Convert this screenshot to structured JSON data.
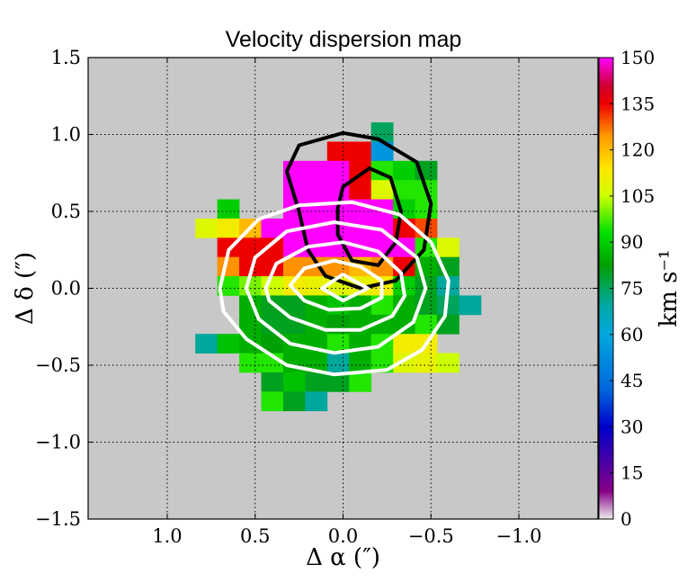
{
  "chart_data": {
    "type": "heatmap",
    "title": "Velocity dispersion map",
    "xlabel": "Δ α  (″)",
    "ylabel": "Δ δ  (″)",
    "xlim": [
      1.45,
      -1.45
    ],
    "ylim": [
      -1.5,
      1.5
    ],
    "x_ticks": [
      1.0,
      0.5,
      0.0,
      -0.5,
      -1.0
    ],
    "x_tick_labels": [
      "1.0",
      "0.5",
      "0.0",
      "−0.5",
      "−1.0"
    ],
    "y_ticks": [
      1.5,
      1.0,
      0.5,
      0.0,
      -0.5,
      -1.0,
      -1.5
    ],
    "y_tick_labels": [
      "1.5",
      "1.0",
      "0.5",
      "0.0",
      "−0.5",
      "−1.0",
      "−1.5"
    ],
    "grid": true,
    "background": "#c8c8c8",
    "pixel_size_arcsec": 0.125,
    "colorbar": {
      "label": "km s⁻¹",
      "range": [
        0,
        150
      ],
      "ticks": [
        150,
        135,
        120,
        105,
        90,
        75,
        60,
        45,
        30,
        15,
        0
      ],
      "tick_labels": [
        "150",
        "135",
        "120",
        "105",
        "90",
        "75",
        "60",
        "45",
        "30",
        "15",
        "0"
      ],
      "placement": "right",
      "colormap": [
        [
          0,
          "#eeeeee"
        ],
        [
          0.06,
          "#880088"
        ],
        [
          0.2,
          "#0000cc"
        ],
        [
          0.28,
          "#0066dd"
        ],
        [
          0.4,
          "#00a8dd"
        ],
        [
          0.46,
          "#00a8a8"
        ],
        [
          0.55,
          "#00a000"
        ],
        [
          0.62,
          "#00e000"
        ],
        [
          0.7,
          "#ccff00"
        ],
        [
          0.76,
          "#ffe600"
        ],
        [
          0.83,
          "#ff9900"
        ],
        [
          0.9,
          "#ee0000"
        ],
        [
          0.94,
          "#cc0033"
        ],
        [
          1.0,
          "#ff00ff"
        ]
      ]
    },
    "pixel_columns": [
      "x_center_arcsec",
      "y_center_arcsec",
      "sigma_km_s"
    ],
    "pixels": [
      [
        -0.222,
        1.016,
        75
      ],
      [
        -0.097,
        0.891,
        135
      ],
      [
        0.028,
        0.891,
        135
      ],
      [
        -0.222,
        0.891,
        55
      ],
      [
        0.278,
        0.766,
        150
      ],
      [
        0.153,
        0.766,
        150
      ],
      [
        0.028,
        0.766,
        150
      ],
      [
        -0.097,
        0.766,
        135
      ],
      [
        -0.222,
        0.766,
        95
      ],
      [
        -0.347,
        0.766,
        90
      ],
      [
        -0.472,
        0.766,
        80
      ],
      [
        0.278,
        0.641,
        150
      ],
      [
        0.153,
        0.641,
        150
      ],
      [
        0.028,
        0.641,
        150
      ],
      [
        -0.097,
        0.641,
        135
      ],
      [
        -0.222,
        0.641,
        108
      ],
      [
        -0.347,
        0.641,
        95
      ],
      [
        -0.472,
        0.641,
        95
      ],
      [
        0.278,
        0.516,
        150
      ],
      [
        0.153,
        0.516,
        150
      ],
      [
        0.028,
        0.516,
        150
      ],
      [
        -0.097,
        0.516,
        150
      ],
      [
        -0.222,
        0.516,
        150
      ],
      [
        -0.347,
        0.516,
        90
      ],
      [
        -0.472,
        0.516,
        95
      ],
      [
        0.653,
        0.516,
        90
      ],
      [
        0.778,
        0.391,
        108
      ],
      [
        0.653,
        0.391,
        112
      ],
      [
        0.528,
        0.391,
        120
      ],
      [
        0.403,
        0.391,
        150
      ],
      [
        0.278,
        0.391,
        150
      ],
      [
        0.153,
        0.391,
        150
      ],
      [
        0.028,
        0.391,
        150
      ],
      [
        -0.097,
        0.391,
        150
      ],
      [
        -0.222,
        0.391,
        150
      ],
      [
        -0.347,
        0.391,
        135
      ],
      [
        -0.472,
        0.391,
        130
      ],
      [
        0.653,
        0.266,
        135
      ],
      [
        0.528,
        0.266,
        135
      ],
      [
        0.403,
        0.266,
        135
      ],
      [
        0.278,
        0.266,
        150
      ],
      [
        0.153,
        0.266,
        150
      ],
      [
        0.028,
        0.266,
        150
      ],
      [
        -0.097,
        0.266,
        150
      ],
      [
        -0.222,
        0.266,
        150
      ],
      [
        -0.347,
        0.266,
        150
      ],
      [
        -0.472,
        0.266,
        95
      ],
      [
        -0.597,
        0.266,
        108
      ],
      [
        0.653,
        0.141,
        125
      ],
      [
        0.528,
        0.141,
        135
      ],
      [
        0.403,
        0.141,
        135
      ],
      [
        0.278,
        0.141,
        125
      ],
      [
        0.153,
        0.141,
        125
      ],
      [
        0.028,
        0.141,
        125
      ],
      [
        -0.097,
        0.141,
        120
      ],
      [
        -0.222,
        0.141,
        125
      ],
      [
        -0.347,
        0.141,
        135
      ],
      [
        -0.472,
        0.141,
        85
      ],
      [
        -0.597,
        0.141,
        80
      ],
      [
        0.653,
        0.016,
        95
      ],
      [
        0.528,
        0.016,
        100
      ],
      [
        0.403,
        0.016,
        105
      ],
      [
        0.278,
        0.016,
        112
      ],
      [
        0.153,
        0.016,
        110
      ],
      [
        0.028,
        0.016,
        108
      ],
      [
        -0.097,
        0.016,
        110
      ],
      [
        -0.222,
        0.016,
        112
      ],
      [
        -0.347,
        0.016,
        90
      ],
      [
        -0.472,
        0.016,
        80
      ],
      [
        -0.597,
        0.016,
        70
      ],
      [
        0.528,
        -0.109,
        85
      ],
      [
        0.403,
        -0.109,
        80
      ],
      [
        0.278,
        -0.109,
        80
      ],
      [
        0.153,
        -0.109,
        85
      ],
      [
        0.028,
        -0.109,
        88
      ],
      [
        -0.097,
        -0.109,
        85
      ],
      [
        -0.222,
        -0.109,
        95
      ],
      [
        -0.347,
        -0.109,
        85
      ],
      [
        -0.472,
        -0.109,
        80
      ],
      [
        -0.597,
        -0.109,
        75
      ],
      [
        -0.722,
        -0.109,
        70
      ],
      [
        0.528,
        -0.234,
        85
      ],
      [
        0.403,
        -0.234,
        80
      ],
      [
        0.278,
        -0.234,
        80
      ],
      [
        0.153,
        -0.234,
        85
      ],
      [
        0.028,
        -0.234,
        82
      ],
      [
        -0.097,
        -0.234,
        85
      ],
      [
        -0.222,
        -0.234,
        85
      ],
      [
        -0.347,
        -0.234,
        85
      ],
      [
        -0.472,
        -0.234,
        95
      ],
      [
        -0.597,
        -0.234,
        80
      ],
      [
        0.778,
        -0.359,
        70
      ],
      [
        0.653,
        -0.359,
        88
      ],
      [
        0.528,
        -0.359,
        85
      ],
      [
        0.403,
        -0.359,
        82
      ],
      [
        0.278,
        -0.359,
        85
      ],
      [
        0.153,
        -0.359,
        85
      ],
      [
        0.028,
        -0.359,
        95
      ],
      [
        -0.097,
        -0.359,
        85
      ],
      [
        -0.222,
        -0.359,
        95
      ],
      [
        -0.347,
        -0.359,
        112
      ],
      [
        -0.472,
        -0.359,
        112
      ],
      [
        0.528,
        -0.484,
        95
      ],
      [
        0.403,
        -0.484,
        95
      ],
      [
        0.278,
        -0.484,
        85
      ],
      [
        0.153,
        -0.484,
        85
      ],
      [
        0.028,
        -0.484,
        70
      ],
      [
        -0.097,
        -0.484,
        85
      ],
      [
        -0.222,
        -0.484,
        95
      ],
      [
        -0.347,
        -0.484,
        108
      ],
      [
        -0.472,
        -0.484,
        110
      ],
      [
        -0.597,
        -0.484,
        105
      ],
      [
        0.403,
        -0.609,
        80
      ],
      [
        0.278,
        -0.609,
        88
      ],
      [
        0.153,
        -0.609,
        80
      ],
      [
        0.028,
        -0.609,
        80
      ],
      [
        -0.097,
        -0.609,
        95
      ],
      [
        0.403,
        -0.734,
        95
      ],
      [
        0.278,
        -0.734,
        80
      ],
      [
        0.153,
        -0.734,
        70
      ]
    ],
    "contours": [
      {
        "color": "#000000",
        "points": [
          [
            0.32,
            0.76
          ],
          [
            0.25,
            0.93
          ],
          [
            0.0,
            1.01
          ],
          [
            -0.2,
            0.97
          ],
          [
            -0.42,
            0.82
          ],
          [
            -0.5,
            0.55
          ],
          [
            -0.46,
            0.25
          ],
          [
            -0.3,
            0.05
          ],
          [
            -0.1,
            0.0
          ],
          [
            0.1,
            0.08
          ],
          [
            0.2,
            0.25
          ],
          [
            0.25,
            0.5
          ],
          [
            0.32,
            0.76
          ]
        ]
      },
      {
        "color": "#000000",
        "points": [
          [
            0.0,
            0.66
          ],
          [
            -0.15,
            0.78
          ],
          [
            -0.27,
            0.72
          ],
          [
            -0.33,
            0.5
          ],
          [
            -0.3,
            0.3
          ],
          [
            -0.2,
            0.15
          ],
          [
            -0.05,
            0.18
          ],
          [
            0.03,
            0.35
          ],
          [
            0.03,
            0.52
          ],
          [
            0.0,
            0.66
          ]
        ]
      },
      {
        "color": "#ffffff",
        "points": [
          [
            0.7,
            0.0
          ],
          [
            0.65,
            0.25
          ],
          [
            0.48,
            0.45
          ],
          [
            0.25,
            0.54
          ],
          [
            -0.05,
            0.56
          ],
          [
            -0.32,
            0.48
          ],
          [
            -0.5,
            0.3
          ],
          [
            -0.6,
            0.05
          ],
          [
            -0.58,
            -0.18
          ],
          [
            -0.45,
            -0.4
          ],
          [
            -0.25,
            -0.53
          ],
          [
            0.05,
            -0.56
          ],
          [
            0.32,
            -0.5
          ],
          [
            0.55,
            -0.33
          ],
          [
            0.68,
            -0.15
          ],
          [
            0.7,
            0.0
          ]
        ]
      },
      {
        "color": "#ffffff",
        "points": [
          [
            0.55,
            0.0
          ],
          [
            0.5,
            0.2
          ],
          [
            0.32,
            0.37
          ],
          [
            0.05,
            0.43
          ],
          [
            -0.22,
            0.38
          ],
          [
            -0.42,
            0.2
          ],
          [
            -0.47,
            0.0
          ],
          [
            -0.4,
            -0.22
          ],
          [
            -0.2,
            -0.38
          ],
          [
            0.05,
            -0.42
          ],
          [
            0.3,
            -0.36
          ],
          [
            0.48,
            -0.2
          ],
          [
            0.55,
            0.0
          ]
        ]
      },
      {
        "color": "#ffffff",
        "points": [
          [
            0.44,
            0.0
          ],
          [
            0.38,
            0.16
          ],
          [
            0.2,
            0.27
          ],
          [
            0.0,
            0.3
          ],
          [
            -0.2,
            0.24
          ],
          [
            -0.33,
            0.1
          ],
          [
            -0.35,
            -0.05
          ],
          [
            -0.28,
            -0.18
          ],
          [
            -0.1,
            -0.27
          ],
          [
            0.1,
            -0.27
          ],
          [
            0.3,
            -0.19
          ],
          [
            0.42,
            -0.08
          ],
          [
            0.44,
            0.0
          ]
        ]
      },
      {
        "color": "#ffffff",
        "points": [
          [
            0.3,
            0.02
          ],
          [
            0.22,
            0.13
          ],
          [
            0.05,
            0.18
          ],
          [
            -0.1,
            0.14
          ],
          [
            -0.22,
            0.05
          ],
          [
            -0.22,
            -0.06
          ],
          [
            -0.1,
            -0.13
          ],
          [
            0.08,
            -0.14
          ],
          [
            0.22,
            -0.08
          ],
          [
            0.3,
            0.02
          ]
        ]
      },
      {
        "color": "#ffffff",
        "points": [
          [
            0.12,
            0.0
          ],
          [
            0.0,
            0.09
          ],
          [
            -0.14,
            0.0
          ],
          [
            0.0,
            -0.08
          ],
          [
            0.12,
            0.0
          ]
        ]
      }
    ]
  }
}
